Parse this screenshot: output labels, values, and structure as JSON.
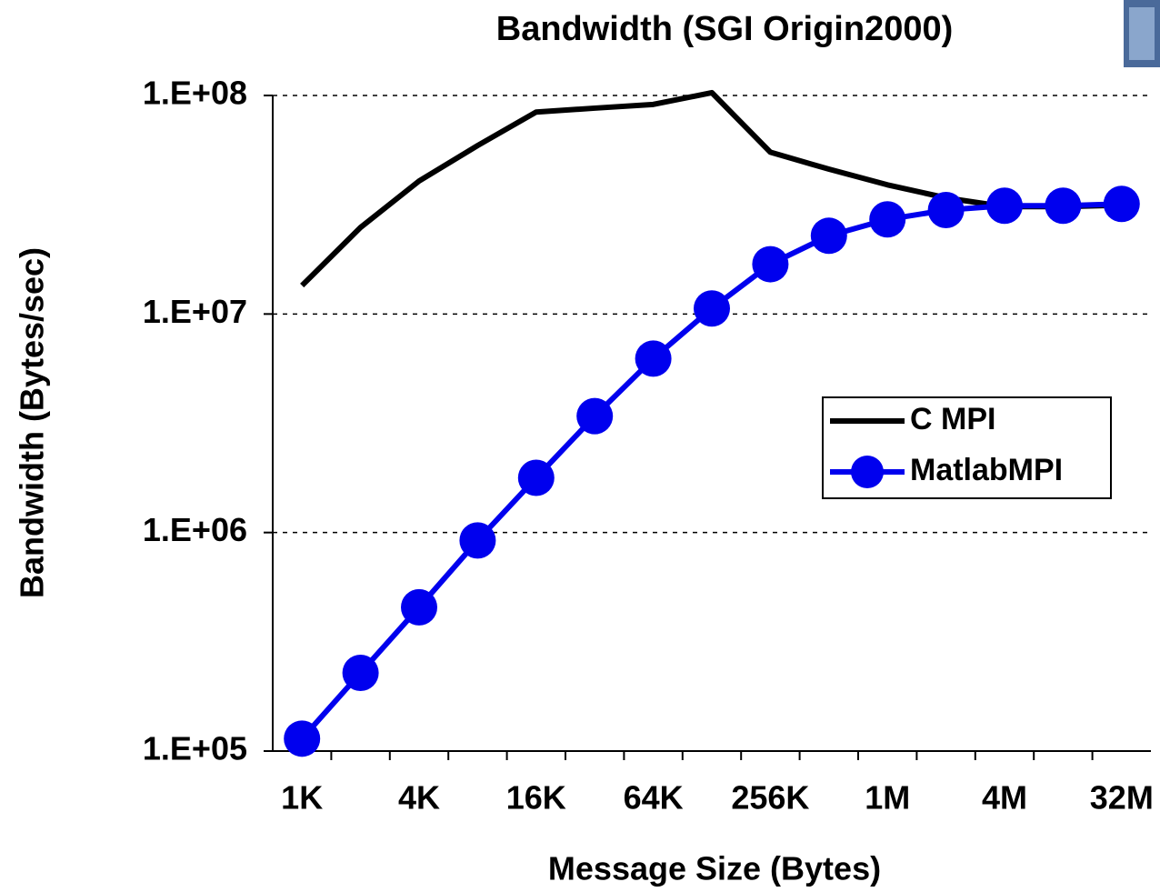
{
  "chart_data": {
    "type": "line",
    "title": "Bandwidth (SGI Origin2000)",
    "x_label": "Message Size (Bytes)",
    "y_label": "Bandwidth (Bytes/sec)",
    "categories": [
      "1K",
      null,
      "4K",
      null,
      "16K",
      null,
      "64K",
      null,
      "256K",
      null,
      "1M",
      null,
      "4M",
      null,
      "32M"
    ],
    "series": [
      {
        "name": "C MPI",
        "color": "#000000",
        "marker": false,
        "values": [
          13500000,
          24900000,
          40600000,
          59000000,
          84000000,
          87500000,
          91000000,
          103000000,
          55000000,
          46000000,
          39000000,
          34000000,
          31000000,
          31000000,
          31500000
        ]
      },
      {
        "name": "MatlabMPI",
        "color": "#0000ee",
        "marker": true,
        "values": [
          114000,
          228000,
          455000,
          920000,
          1780000,
          3410000,
          6250000,
          10600000,
          16900000,
          22800000,
          27100000,
          29900000,
          31300000,
          31300000,
          31900000
        ]
      }
    ],
    "ylim": [
      100000,
      100000000
    ],
    "log_y": true,
    "yticks": [
      {
        "value": 100000,
        "label": "1.E+05"
      },
      {
        "value": 1000000,
        "label": "1.E+06"
      },
      {
        "value": 10000000,
        "label": "1.E+07"
      },
      {
        "value": 100000000,
        "label": "1.E+08"
      }
    ],
    "grid": true,
    "legend": "right"
  }
}
